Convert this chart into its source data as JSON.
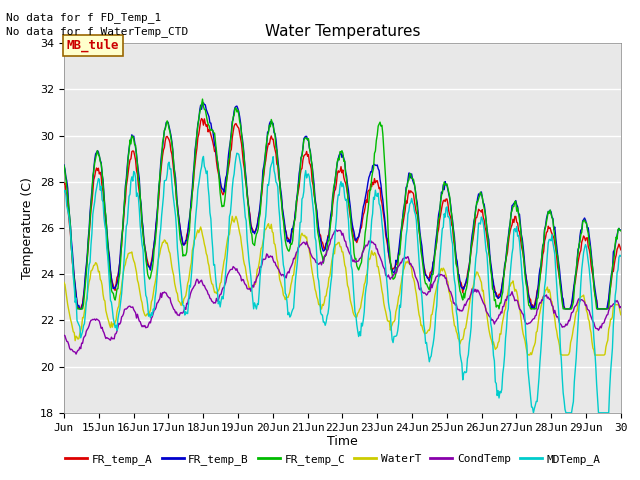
{
  "title": "Water Temperatures",
  "ylabel": "Temperature (C)",
  "xlabel": "Time",
  "ylim": [
    18,
    34
  ],
  "yticks": [
    18,
    20,
    22,
    24,
    26,
    28,
    30,
    32,
    34
  ],
  "xtick_labels": [
    "Jun",
    "15Jun",
    "16Jun",
    "17Jun",
    "18Jun",
    "19Jun",
    "20Jun",
    "21Jun",
    "22Jun",
    "23Jun",
    "24Jun",
    "25Jun",
    "26Jun",
    "27Jun",
    "28Jun",
    "29Jun",
    "30"
  ],
  "no_data_texts": [
    "No data for f FD_Temp_1",
    "No data for f WaterTemp_CTD"
  ],
  "mb_tule_label": "MB_tule",
  "bg_color": "#e8e8e8",
  "line_colors": [
    "#dd0000",
    "#0000cc",
    "#00bb00",
    "#cccc00",
    "#8800aa",
    "#00cccc"
  ],
  "legend_labels": [
    "FR_temp_A",
    "FR_temp_B",
    "FR_temp_C",
    "WaterT",
    "CondTemp",
    "MDTemp_A"
  ],
  "fig_width": 6.4,
  "fig_height": 4.8,
  "dpi": 100
}
